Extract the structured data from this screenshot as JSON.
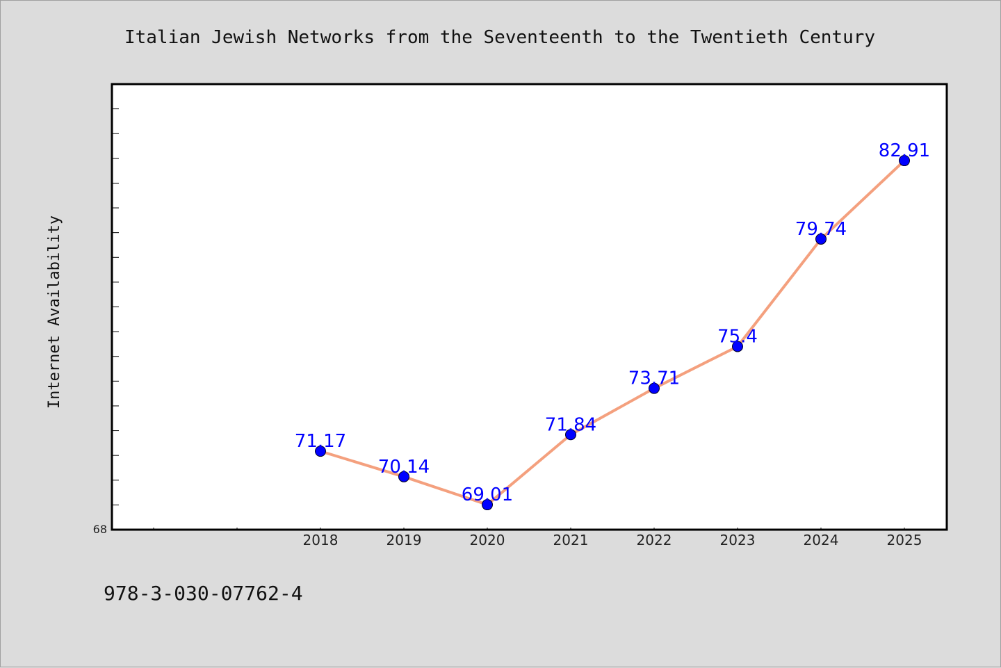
{
  "chart_data": {
    "type": "line",
    "title": "Italian Jewish Networks from the Seventeenth to the Twentieth Century",
    "xlabel": "",
    "ylabel": "Internet Availability",
    "categories": [
      "2018",
      "2019",
      "2020",
      "2021",
      "2022",
      "2023",
      "2024",
      "2025"
    ],
    "values": [
      71.17,
      70.14,
      69.01,
      71.84,
      73.71,
      75.4,
      79.74,
      82.91
    ],
    "data_labels": [
      "71.17",
      "70.14",
      "69.01",
      "71.84",
      "73.71",
      "75.4",
      "79.74",
      "82.91"
    ],
    "ylim": [
      68,
      86
    ],
    "y_tick_label_shown": "68",
    "grid": false,
    "legend": "none",
    "line_color": "#f4a07e",
    "marker_color": "#0000ff",
    "label_color": "#0000ff"
  },
  "footer": {
    "isbn": "978-3-030-07762-4"
  }
}
